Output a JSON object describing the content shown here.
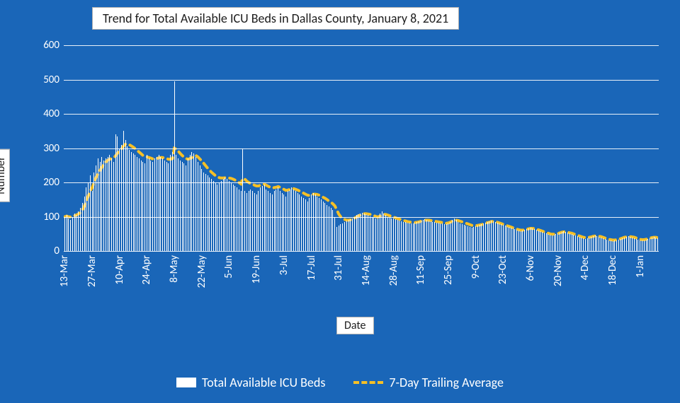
{
  "chart": {
    "type": "bar+line",
    "title": "Trend for Total Available ICU Beds in Dallas County, January 8, 2021",
    "xlabel": "Date",
    "ylabel": "Number",
    "background_color": "#1a66b8",
    "grid_color": "#ffffff",
    "text_color": "#ffffff",
    "title_box_bg": "#ffffff",
    "title_box_border": "#b0b0b0",
    "title_fontsize": 18,
    "axis_label_fontsize": 16,
    "tick_fontsize": 15,
    "legend_fontsize": 18,
    "ylim": [
      0,
      640
    ],
    "yticks": [
      0,
      100,
      200,
      300,
      400,
      500,
      600
    ],
    "bar_color": "#ffffff",
    "bar_width_ratio": 0.35,
    "line_color": "#f6c026",
    "line_width": 4,
    "line_dash": "8,7",
    "xtick_labels": [
      "13-Mar",
      "27-Mar",
      "10-Apr",
      "24-Apr",
      "8-May",
      "22-May",
      "5-Jun",
      "19-Jun",
      "3-Jul",
      "17-Jul",
      "31-Jul",
      "14-Aug",
      "28-Aug",
      "11-Sep",
      "25-Sep",
      "9-Oct",
      "23-Oct",
      "6-Nov",
      "20-Nov",
      "4-Dec",
      "18-Dec",
      "1-Jan"
    ],
    "xtick_every": 14,
    "bar_values": [
      100,
      105,
      95,
      90,
      100,
      110,
      105,
      115,
      125,
      140,
      160,
      185,
      200,
      220,
      175,
      230,
      250,
      270,
      260,
      275,
      265,
      270,
      275,
      280,
      270,
      260,
      340,
      335,
      300,
      310,
      350,
      325,
      305,
      295,
      290,
      285,
      280,
      275,
      270,
      265,
      260,
      255,
      280,
      270,
      265,
      260,
      270,
      275,
      280,
      275,
      270,
      265,
      260,
      255,
      280,
      290,
      495,
      280,
      270,
      265,
      260,
      255,
      250,
      270,
      280,
      290,
      285,
      275,
      260,
      250,
      240,
      230,
      225,
      220,
      215,
      210,
      205,
      200,
      195,
      200,
      205,
      210,
      215,
      210,
      205,
      200,
      195,
      190,
      185,
      180,
      175,
      300,
      175,
      170,
      175,
      180,
      175,
      170,
      165,
      175,
      185,
      190,
      195,
      180,
      175,
      170,
      165,
      175,
      180,
      185,
      175,
      170,
      165,
      160,
      175,
      180,
      185,
      180,
      175,
      170,
      165,
      160,
      155,
      150,
      145,
      155,
      165,
      170,
      165,
      160,
      155,
      150,
      145,
      140,
      135,
      130,
      125,
      120,
      100,
      70,
      75,
      78,
      80,
      85,
      88,
      90,
      92,
      95,
      100,
      105,
      108,
      110,
      112,
      110,
      108,
      105,
      102,
      100,
      98,
      96,
      95,
      110,
      115,
      110,
      105,
      100,
      98,
      96,
      94,
      92,
      90,
      88,
      86,
      85,
      84,
      83,
      82,
      81,
      80,
      82,
      84,
      86,
      88,
      90,
      92,
      90,
      88,
      86,
      85,
      84,
      83,
      82,
      81,
      80,
      79,
      78,
      80,
      85,
      90,
      95,
      90,
      85,
      80,
      78,
      76,
      74,
      72,
      70,
      68,
      70,
      72,
      74,
      76,
      78,
      80,
      82,
      84,
      86,
      88,
      86,
      84,
      82,
      80,
      78,
      76,
      74,
      72,
      70,
      68,
      66,
      64,
      62,
      60,
      58,
      60,
      62,
      64,
      66,
      68,
      66,
      64,
      62,
      60,
      58,
      56,
      54,
      52,
      50,
      48,
      46,
      48,
      50,
      52,
      54,
      56,
      58,
      56,
      54,
      52,
      50,
      48,
      46,
      44,
      42,
      40,
      38,
      36,
      38,
      40,
      42,
      44,
      46,
      44,
      42,
      40,
      38,
      36,
      34,
      32,
      30,
      28,
      30,
      32,
      34,
      36,
      38,
      40,
      42,
      44,
      42,
      40,
      38,
      36,
      34,
      32,
      30,
      32,
      34,
      36,
      38,
      40,
      42,
      40,
      38
    ],
    "trailing_values": [
      100,
      102,
      100,
      99,
      100,
      103,
      105,
      108,
      112,
      120,
      130,
      145,
      160,
      175,
      185,
      200,
      215,
      225,
      235,
      245,
      253,
      260,
      265,
      268,
      270,
      271,
      278,
      286,
      292,
      298,
      306,
      312,
      313,
      310,
      307,
      303,
      299,
      294,
      289,
      284,
      279,
      276,
      275,
      273,
      271,
      269,
      269,
      270,
      272,
      273,
      273,
      272,
      270,
      268,
      268,
      270,
      300,
      298,
      292,
      285,
      279,
      274,
      270,
      268,
      270,
      273,
      277,
      279,
      275,
      269,
      263,
      256,
      249,
      242,
      236,
      230,
      225,
      220,
      216,
      214,
      213,
      213,
      214,
      214,
      213,
      212,
      210,
      207,
      204,
      200,
      196,
      212,
      210,
      204,
      200,
      197,
      195,
      192,
      190,
      190,
      192,
      194,
      195,
      192,
      189,
      186,
      184,
      185,
      186,
      188,
      186,
      183,
      180,
      177,
      178,
      180,
      182,
      182,
      180,
      178,
      175,
      172,
      169,
      166,
      163,
      162,
      164,
      166,
      166,
      165,
      163,
      160,
      157,
      154,
      150,
      146,
      142,
      138,
      132,
      120,
      108,
      100,
      95,
      92,
      90,
      90,
      91,
      93,
      96,
      99,
      102,
      105,
      108,
      109,
      109,
      108,
      107,
      105,
      103,
      101,
      99,
      102,
      105,
      107,
      107,
      105,
      103,
      101,
      99,
      97,
      95,
      93,
      91,
      89,
      88,
      86,
      85,
      84,
      83,
      83,
      84,
      85,
      87,
      88,
      90,
      90,
      90,
      89,
      88,
      87,
      86,
      85,
      84,
      83,
      82,
      81,
      82,
      84,
      87,
      90,
      90,
      89,
      87,
      85,
      83,
      81,
      79,
      77,
      75,
      74,
      74,
      75,
      76,
      77,
      79,
      81,
      83,
      84,
      86,
      86,
      85,
      84,
      82,
      80,
      78,
      76,
      74,
      72,
      70,
      68,
      66,
      64,
      62,
      61,
      61,
      62,
      63,
      65,
      66,
      66,
      65,
      64,
      62,
      60,
      58,
      56,
      54,
      52,
      50,
      49,
      49,
      50,
      51,
      53,
      55,
      56,
      56,
      55,
      53,
      52,
      50,
      48,
      46,
      44,
      42,
      40,
      39,
      39,
      40,
      41,
      43,
      44,
      44,
      43,
      42,
      40,
      38,
      36,
      34,
      33,
      32,
      32,
      33,
      34,
      36,
      38,
      40,
      41,
      42,
      42,
      41,
      40,
      38,
      36,
      34,
      33,
      33,
      34,
      36,
      38,
      39,
      40,
      40,
      39
    ]
  },
  "legend": {
    "bar_label": "Total Available ICU Beds",
    "line_label": "7-Day Trailing Average"
  }
}
